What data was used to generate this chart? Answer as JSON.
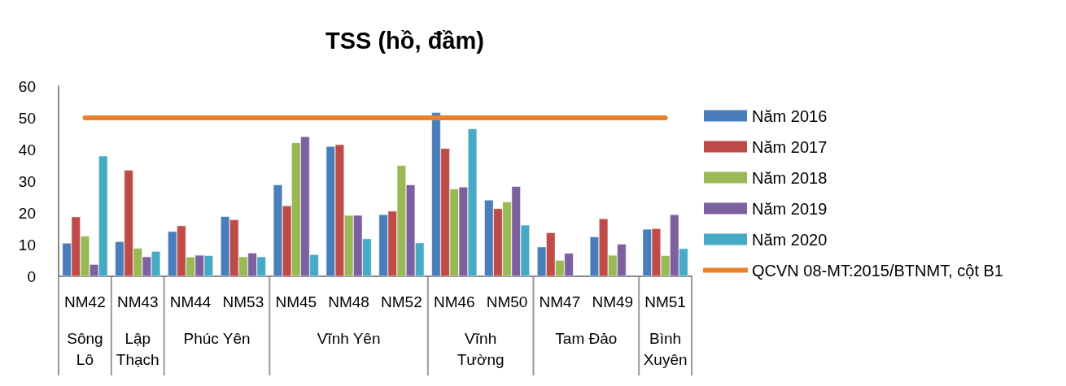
{
  "chart_data": {
    "type": "bar",
    "title": "TSS (hồ, đầm)",
    "categories": [
      "NM42",
      "NM43",
      "NM44",
      "NM53",
      "NM45",
      "NM48",
      "NM52",
      "NM46",
      "NM50",
      "NM47",
      "NM49",
      "NM51"
    ],
    "series": [
      {
        "name": "Năm 2016",
        "color": "#4a7ebb",
        "values": [
          10.5,
          11.0,
          14.2,
          18.9,
          28.9,
          41.0,
          19.5,
          51.7,
          24.1,
          9.3,
          12.5,
          14.9
        ]
      },
      {
        "name": "Năm 2017",
        "color": "#be4b48",
        "values": [
          18.8,
          33.5,
          16.0,
          17.9,
          22.3,
          41.6,
          20.6,
          40.4,
          21.4,
          13.8,
          18.2,
          15.1
        ]
      },
      {
        "name": "Năm 2018",
        "color": "#98b954",
        "values": [
          12.7,
          8.9,
          6.1,
          6.2,
          42.2,
          19.3,
          35.0,
          27.6,
          23.5,
          5.1,
          6.7,
          6.6
        ]
      },
      {
        "name": "Năm 2019",
        "color": "#7d60a0",
        "values": [
          3.8,
          6.2,
          6.7,
          7.4,
          44.1,
          19.3,
          28.9,
          28.2,
          28.4,
          7.3,
          10.2,
          19.5
        ]
      },
      {
        "name": "Năm 2020",
        "color": "#46aac5",
        "values": [
          38.0,
          7.9,
          6.6,
          6.2,
          6.9,
          11.9,
          10.6,
          46.6,
          16.2,
          null,
          null,
          8.8
        ]
      },
      {
        "name": "QCVN 08-MT:2015/BTNMT, cột B1",
        "type": "line",
        "color": "#e8822e",
        "values": [
          50,
          50,
          50,
          50,
          50,
          50,
          50,
          50,
          50,
          50,
          50,
          50
        ]
      }
    ],
    "annotations": [
      "Sông Lô",
      "Lập Thạch",
      "Phúc Yên",
      "Vĩnh Yên",
      "Vĩnh Tường",
      "Tam Đảo",
      "Bình Xuyên"
    ],
    "ylim": [
      0,
      60
    ],
    "yticks": [
      0,
      10,
      20,
      30,
      40,
      50,
      60
    ],
    "grid": false,
    "legend": "right",
    "marker": "none"
  }
}
